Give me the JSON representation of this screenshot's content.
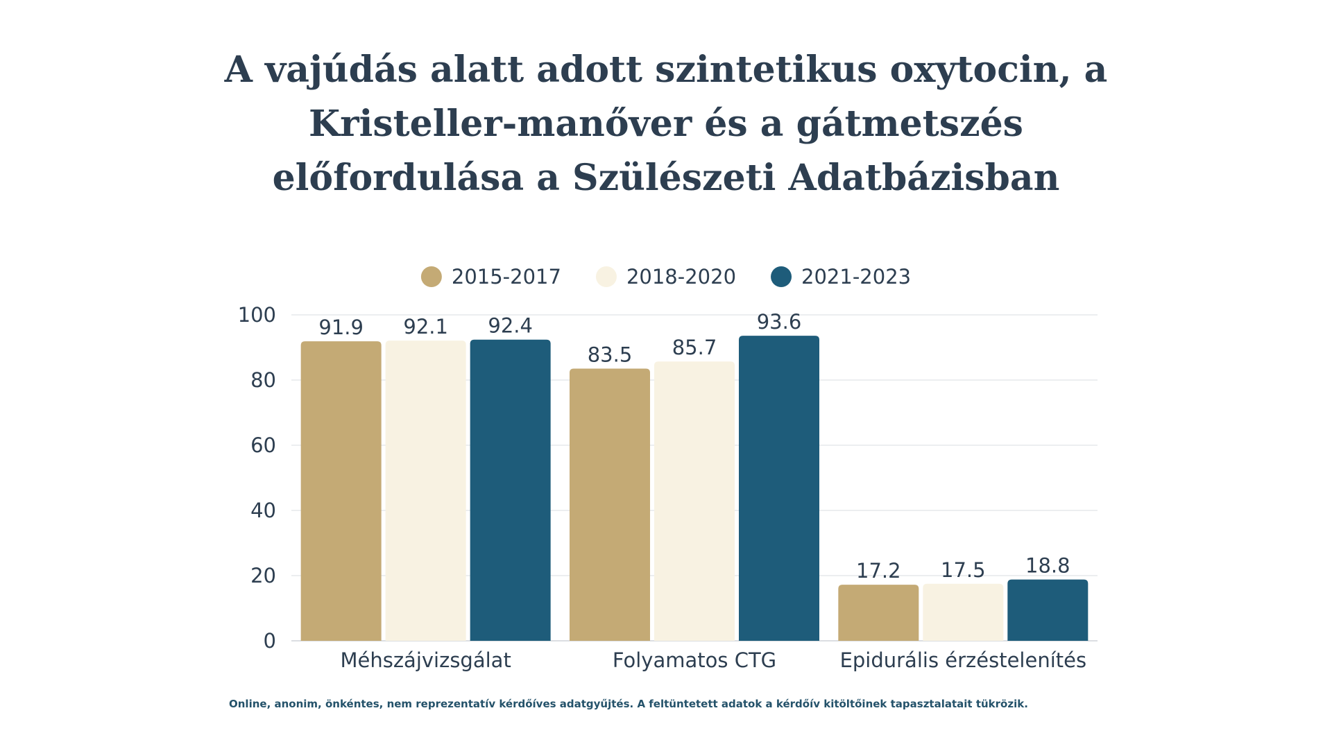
{
  "chart_data": {
    "type": "bar",
    "title": "A vajúdás alatt adott szintetikus oxytocin, a Kristeller-manőver és a gátmetszés előfordulása a Szülészeti Adatbázisban",
    "categories": [
      "Méhszájvizsgálat",
      "Folyamatos CTG",
      "Epidurális érzéstelenítés"
    ],
    "series": [
      {
        "name": "2015-2017",
        "color": "#c4aa75",
        "values": [
          91.9,
          83.5,
          17.2
        ]
      },
      {
        "name": "2018-2020",
        "color": "#f8f2e2",
        "values": [
          92.1,
          85.7,
          17.5
        ]
      },
      {
        "name": "2021-2023",
        "color": "#1e5c7a",
        "values": [
          92.4,
          93.6,
          18.8
        ]
      }
    ],
    "ylim": [
      0,
      100
    ],
    "yticks": [
      0,
      20,
      40,
      60,
      80,
      100
    ],
    "grid": true,
    "legend_position": "top-center",
    "data_labels": true
  },
  "footnote": "Online, anonim, önkéntes, nem reprezentatív kérdőíves adatgyűjtés. A feltüntetett adatok a kérdőív kitöltőinek tapasztalatait tükrözik."
}
